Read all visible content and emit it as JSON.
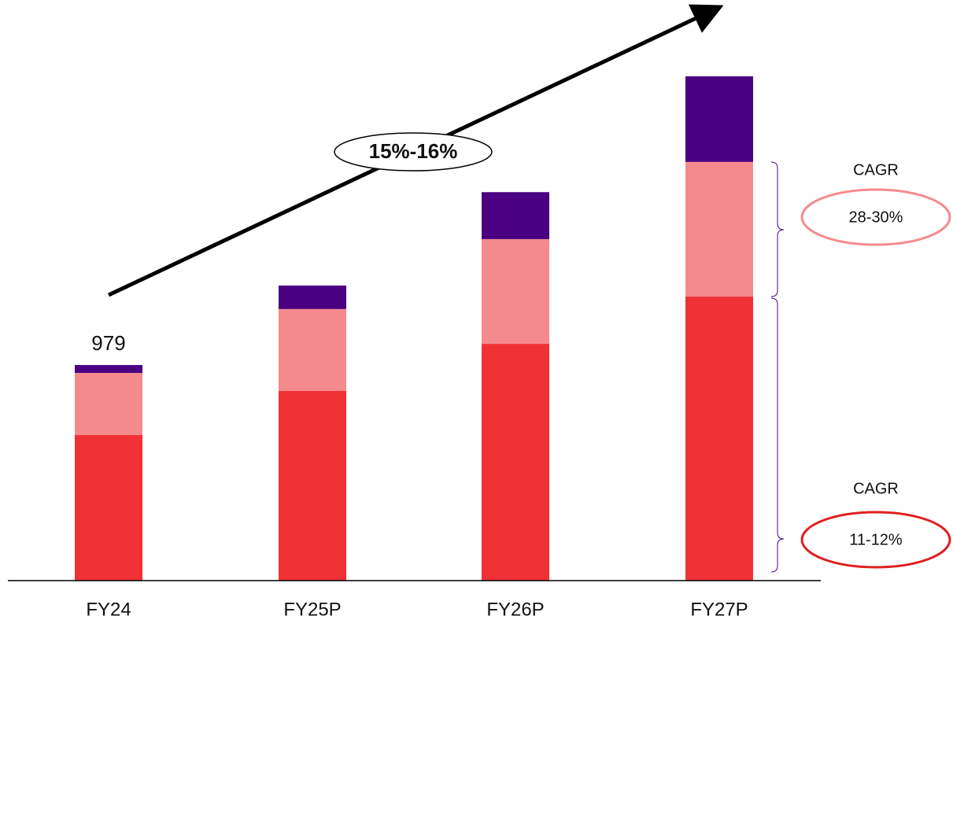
{
  "chart_data": {
    "type": "stacked-bar",
    "categories": [
      "FY24",
      "FY25P",
      "FY26P",
      "FY27P"
    ],
    "series": [
      {
        "color": "#f03237",
        "values": [
          661,
          861,
          1075,
          1290
        ]
      },
      {
        "color": "#f58a8d",
        "values": [
          282,
          372,
          475,
          611
        ]
      },
      {
        "color": "#4b0082",
        "values": [
          36,
          107,
          214,
          389
        ]
      }
    ],
    "totals": [
      979,
      null,
      null,
      null
    ],
    "growth_label": "15%-16%",
    "cagr": [
      {
        "label": "CAGR",
        "value": "28-30%",
        "color": "#f58a8d"
      },
      {
        "label": "CAGR",
        "value": "11-12%",
        "color": "#e02020"
      }
    ]
  }
}
